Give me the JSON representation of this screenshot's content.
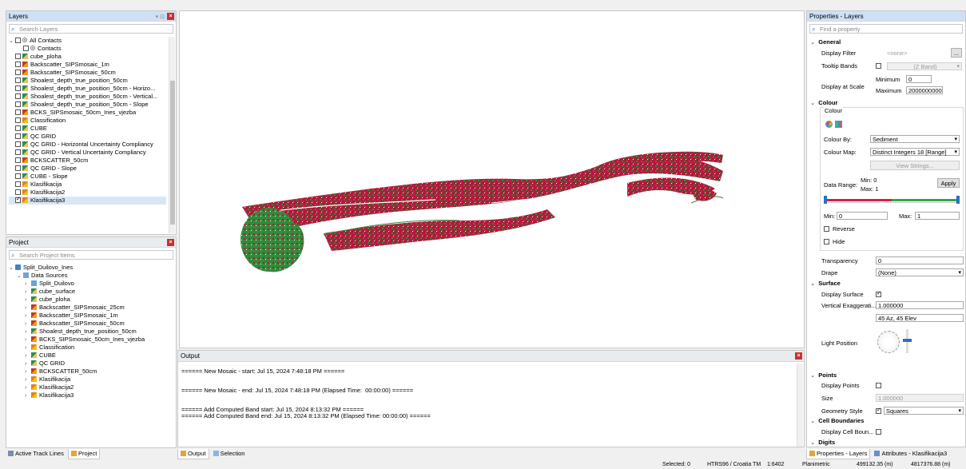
{
  "layers_panel": {
    "title": "Layers",
    "search_placeholder": "Search Layers",
    "items": [
      {
        "label": "All Contacts",
        "checked": false,
        "icon": "radio-icon",
        "indent": 0,
        "caret": "⌄"
      },
      {
        "label": "Contacts",
        "checked": false,
        "icon": "radio-icon",
        "indent": 1,
        "caret": ""
      },
      {
        "label": "cube_ploha",
        "checked": false,
        "icon": "grid-icon",
        "indent": 0,
        "caret": ""
      },
      {
        "label": "Backscatter_SIPSmosaic_1m",
        "checked": false,
        "icon": "backscatter-icon",
        "indent": 0,
        "caret": ""
      },
      {
        "label": "Backscatter_SIPSmosaic_50cm",
        "checked": false,
        "icon": "backscatter-icon",
        "indent": 0,
        "caret": ""
      },
      {
        "label": "Shoalest_depth_true_position_50cm",
        "checked": false,
        "icon": "grid-icon",
        "indent": 0,
        "caret": ""
      },
      {
        "label": "Shoalest_depth_true_position_50cm - Horizo...",
        "checked": false,
        "icon": "grid-icon",
        "indent": 0,
        "caret": ""
      },
      {
        "label": "Shoalest_depth_true_position_50cm - Vertical...",
        "checked": false,
        "icon": "grid-icon",
        "indent": 0,
        "caret": ""
      },
      {
        "label": "Shoalest_depth_true_position_50cm - Slope",
        "checked": false,
        "icon": "grid-icon",
        "indent": 0,
        "caret": ""
      },
      {
        "label": "BCKS_SIPSmosaic_50cm_Ines_vjezba",
        "checked": false,
        "icon": "backscatter-icon",
        "indent": 0,
        "caret": ""
      },
      {
        "label": "Classification",
        "checked": false,
        "icon": "classification-icon",
        "indent": 0,
        "caret": ""
      },
      {
        "label": "CUBE",
        "checked": false,
        "icon": "grid-icon",
        "indent": 0,
        "caret": ""
      },
      {
        "label": "QC GRID",
        "checked": false,
        "icon": "grid-icon",
        "indent": 0,
        "caret": ""
      },
      {
        "label": "QC GRID - Horizontal Uncertainty Compliancy",
        "checked": false,
        "icon": "grid-icon",
        "indent": 0,
        "caret": ""
      },
      {
        "label": "QC GRID - Vertical Uncertainty Compliancy",
        "checked": false,
        "icon": "grid-icon",
        "indent": 0,
        "caret": ""
      },
      {
        "label": "BCKSCATTER_50cm",
        "checked": false,
        "icon": "backscatter-icon",
        "indent": 0,
        "caret": ""
      },
      {
        "label": "QC GRID - Slope",
        "checked": false,
        "icon": "grid-icon",
        "indent": 0,
        "caret": ""
      },
      {
        "label": "CUBE - Slope",
        "checked": false,
        "icon": "grid-icon",
        "indent": 0,
        "caret": ""
      },
      {
        "label": "Klasifikacija",
        "checked": false,
        "icon": "classification-icon",
        "indent": 0,
        "caret": ""
      },
      {
        "label": "Klasifikacija2",
        "checked": false,
        "icon": "classification-icon",
        "indent": 0,
        "caret": ""
      },
      {
        "label": "Klasifikacija3",
        "checked": true,
        "icon": "classification-icon",
        "indent": 0,
        "caret": "",
        "selected": true
      }
    ]
  },
  "project_panel": {
    "title": "Project",
    "search_placeholder": "Search Project Items",
    "items": [
      {
        "label": "Split_Duilovo_Ines",
        "icon": "project-icon",
        "indent": 0,
        "caret": "⌄"
      },
      {
        "label": "Data Sources",
        "icon": "data-sources-icon",
        "indent": 1,
        "caret": "⌄"
      },
      {
        "label": "Split_Duilovo",
        "icon": "vessel-icon",
        "indent": 2,
        "caret": "›"
      },
      {
        "label": "cube_surface",
        "icon": "grid-icon",
        "indent": 2,
        "caret": "›"
      },
      {
        "label": "cube_ploha",
        "icon": "grid-icon",
        "indent": 2,
        "caret": "›"
      },
      {
        "label": "Backscatter_SIPSmosaic_25cm",
        "icon": "backscatter-icon",
        "indent": 2,
        "caret": "›"
      },
      {
        "label": "Backscatter_SIPSmosaic_1m",
        "icon": "backscatter-icon",
        "indent": 2,
        "caret": "›"
      },
      {
        "label": "Backscatter_SIPSmosaic_50cm",
        "icon": "backscatter-icon",
        "indent": 2,
        "caret": "›"
      },
      {
        "label": "Shoalest_depth_true_position_50cm",
        "icon": "grid-icon",
        "indent": 2,
        "caret": "›"
      },
      {
        "label": "BCKS_SIPSmosaic_50cm_Ines_vjezba",
        "icon": "backscatter-icon",
        "indent": 2,
        "caret": "›"
      },
      {
        "label": "Classification",
        "icon": "classification-icon",
        "indent": 2,
        "caret": "›"
      },
      {
        "label": "CUBE",
        "icon": "grid-icon",
        "indent": 2,
        "caret": "›"
      },
      {
        "label": "QC GRID",
        "icon": "grid-icon",
        "indent": 2,
        "caret": "›"
      },
      {
        "label": "BCKSCATTER_50cm",
        "icon": "backscatter-icon",
        "indent": 2,
        "caret": "›"
      },
      {
        "label": "Klasifikacija",
        "icon": "classification-icon",
        "indent": 2,
        "caret": "›"
      },
      {
        "label": "Klasifikacija2",
        "icon": "classification-icon",
        "indent": 2,
        "caret": "›"
      },
      {
        "label": "Klasifikacija3",
        "icon": "classification-icon",
        "indent": 2,
        "caret": "›"
      }
    ]
  },
  "left_tabs": {
    "active_track_lines": "Active Track Lines",
    "project": "Project"
  },
  "output_panel": {
    "title": "Output",
    "lines": [
      "====== New Mosaic - start: Jul 15, 2024 7:48:18 PM ======",
      "",
      "",
      "====== New Mosaic - end: Jul 15, 2024 7:48:18 PM (Elapsed Time:  00:00:00) ======",
      "",
      "",
      "====== Add Computed Band start: Jul 15, 2024 8:13:32 PM ======",
      "====== Add Computed Band end: Jul 15, 2024 8:13:32 PM (Elapsed Time: 00:00:00) ======"
    ]
  },
  "bottom_tabs": {
    "output": "Output",
    "selection": "Selection"
  },
  "properties_panel": {
    "title": "Properties - Layers",
    "search_placeholder": "Find a property",
    "general": {
      "header": "General",
      "display_filter_label": "Display Filter",
      "display_filter_value": "<none>",
      "ellipsis": "...",
      "tooltip_bands_label": "Tooltip Bands",
      "tooltip_bands_value": "(Z Band)",
      "display_at_scale_label": "Display at Scale",
      "minimum_label": "Minimum",
      "minimum_value": "0",
      "maximum_label": "Maximum",
      "maximum_value": "2000000000"
    },
    "colour": {
      "header": "Colour",
      "group_label": "Colour",
      "colour_by_label": "Colour By:",
      "colour_by_value": "Sediment",
      "colour_map_label": "Colour Map:",
      "colour_map_value": "Distinct Integers 18 [Range]",
      "view_strings": "View Strings...",
      "data_range_label": "Data Range:",
      "min_text": "Min: 0",
      "max_text": "Max: 1",
      "apply": "Apply",
      "min_label": "Min:",
      "min_value": "0",
      "max_label": "Max:",
      "max_value": "1",
      "reverse_label": "Reverse",
      "hide_label": "Hide",
      "ramp_colors": [
        "#d2224b",
        "#2fa84f"
      ]
    },
    "transparency_label": "Transparency",
    "transparency_value": "0",
    "drape_label": "Drape",
    "drape_value": "(None)",
    "surface": {
      "header": "Surface",
      "display_surface_label": "Display Surface",
      "vertical_exag_label": "Vertical Exaggerati...",
      "vertical_exag_value": "1.000000",
      "light_value": "45  Az, 45 Elev",
      "light_position_label": "Light Position"
    },
    "points": {
      "header": "Points",
      "display_points_label": "Display Points",
      "size_label": "Size",
      "size_value": "1.000000",
      "geometry_style_label": "Geometry Style",
      "geometry_style_value": "Squares"
    },
    "cell_boundaries": {
      "header": "Cell Boundaries",
      "display_cell_label": "Display Cell Boun..."
    },
    "digits": {
      "header": "Digits"
    }
  },
  "right_tabs": {
    "properties": "Properties - Layers",
    "attributes": "Attributes - Klasifikacija3"
  },
  "status_bar": {
    "selected": "Selected: 0",
    "crs": "HTRS96 / Croatia TM",
    "scale": "1:6402",
    "mode": "Planimetric",
    "easting": "499132.35 (m)",
    "northing": "4817376.88 (m)"
  },
  "map_colors": {
    "sediment_a": "#b5173c",
    "sediment_b": "#2f8c3a"
  }
}
